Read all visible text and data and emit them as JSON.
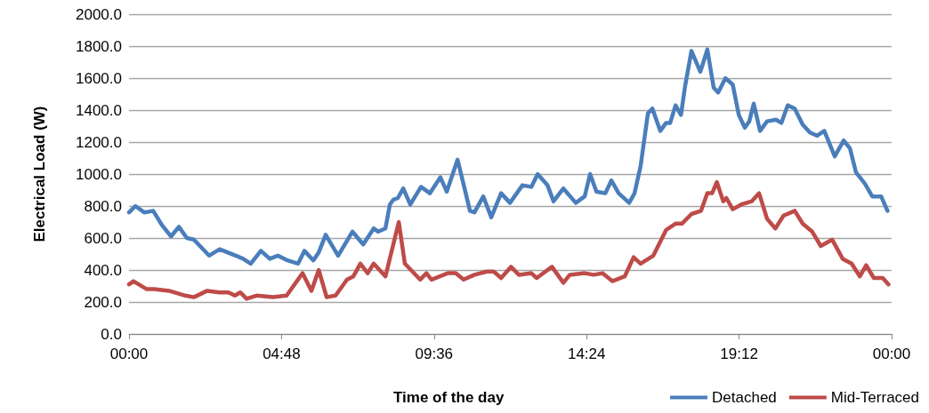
{
  "chart_data": {
    "type": "line",
    "xlabel": "Time of the day",
    "ylabel": "Electrical Load (W)",
    "xlim": [
      0,
      24
    ],
    "xticks": [
      {
        "value": 0,
        "label": "00:00"
      },
      {
        "value": 4.8,
        "label": "04:48"
      },
      {
        "value": 9.6,
        "label": "09:36"
      },
      {
        "value": 14.4,
        "label": "14:24"
      },
      {
        "value": 19.2,
        "label": "19:12"
      },
      {
        "value": 24,
        "label": "00:00"
      }
    ],
    "ylim": [
      0,
      2000
    ],
    "yticks": [
      {
        "value": 0,
        "label": "0.0"
      },
      {
        "value": 200,
        "label": "200.0"
      },
      {
        "value": 400,
        "label": "400.0"
      },
      {
        "value": 600,
        "label": "600.0"
      },
      {
        "value": 800,
        "label": "800.0"
      },
      {
        "value": 1000,
        "label": "1000.0"
      },
      {
        "value": 1200,
        "label": "1200.0"
      },
      {
        "value": 1400,
        "label": "1400.0"
      },
      {
        "value": 1600,
        "label": "1600.0"
      },
      {
        "value": 1800,
        "label": "1800.0"
      },
      {
        "value": 2000,
        "label": "2000.0"
      }
    ],
    "grid": "y",
    "legend": "bottom right",
    "marker": "none",
    "line_style": "solid",
    "series": [
      {
        "name": "Detached",
        "color": "#4a7ebb",
        "x": [
          0,
          0.2,
          0.48,
          0.76,
          1.04,
          1.32,
          1.57,
          1.82,
          2.04,
          2.52,
          2.85,
          3.36,
          3.59,
          3.83,
          4.15,
          4.43,
          4.68,
          4.99,
          5.32,
          5.52,
          5.8,
          5.97,
          6.19,
          6.58,
          7.03,
          7.37,
          7.7,
          7.84,
          8.07,
          8.21,
          8.32,
          8.46,
          8.63,
          8.85,
          9.19,
          9.47,
          9.8,
          10.0,
          10.34,
          10.73,
          10.87,
          11.15,
          11.4,
          11.71,
          11.99,
          12.38,
          12.66,
          12.86,
          13.17,
          13.36,
          13.67,
          14.06,
          14.34,
          14.51,
          14.71,
          14.99,
          15.18,
          15.41,
          15.74,
          15.91,
          16.1,
          16.33,
          16.47,
          16.72,
          16.9,
          17.03,
          17.2,
          17.37,
          17.5,
          17.7,
          17.98,
          18.2,
          18.4,
          18.54,
          18.77,
          19.0,
          19.19,
          19.38,
          19.52,
          19.66,
          19.86,
          20.08,
          20.36,
          20.53,
          20.73,
          20.95,
          21.2,
          21.43,
          21.65,
          21.88,
          22.21,
          22.49,
          22.69,
          22.88,
          23.16,
          23.39,
          23.67,
          23.87
        ],
        "values": [
          760,
          800,
          760,
          770,
          680,
          610,
          670,
          600,
          590,
          490,
          530,
          490,
          470,
          440,
          520,
          470,
          490,
          460,
          440,
          520,
          460,
          510,
          620,
          490,
          640,
          560,
          660,
          640,
          660,
          810,
          840,
          850,
          910,
          810,
          920,
          880,
          980,
          890,
          1090,
          770,
          760,
          860,
          730,
          880,
          820,
          930,
          920,
          1000,
          930,
          830,
          910,
          820,
          860,
          1000,
          890,
          880,
          960,
          880,
          820,
          880,
          1050,
          1380,
          1410,
          1270,
          1320,
          1320,
          1430,
          1370,
          1550,
          1770,
          1640,
          1780,
          1540,
          1510,
          1600,
          1560,
          1370,
          1290,
          1330,
          1440,
          1270,
          1330,
          1340,
          1320,
          1430,
          1410,
          1310,
          1260,
          1240,
          1270,
          1110,
          1210,
          1160,
          1010,
          940,
          860,
          860,
          770
        ]
      },
      {
        "name": "Mid-Terraced",
        "color": "#be4b48",
        "x": [
          0,
          0.14,
          0.56,
          0.79,
          1.26,
          1.77,
          2.04,
          2.46,
          2.85,
          3.13,
          3.33,
          3.5,
          3.7,
          4.01,
          4.53,
          4.96,
          5.46,
          5.74,
          5.97,
          6.22,
          6.5,
          6.86,
          7.06,
          7.28,
          7.51,
          7.7,
          8.07,
          8.49,
          8.68,
          9.16,
          9.36,
          9.52,
          10.03,
          10.28,
          10.53,
          10.87,
          11.26,
          11.48,
          11.71,
          12.02,
          12.27,
          12.66,
          12.83,
          13.31,
          13.67,
          13.87,
          14.34,
          14.62,
          14.9,
          15.21,
          15.6,
          15.88,
          16.1,
          16.5,
          16.7,
          16.9,
          17.2,
          17.4,
          17.7,
          18.0,
          18.2,
          18.35,
          18.5,
          18.7,
          18.8,
          19.0,
          19.27,
          19.6,
          19.83,
          20.08,
          20.34,
          20.6,
          20.95,
          21.2,
          21.5,
          21.77,
          22.13,
          22.46,
          22.74,
          23.0,
          23.2,
          23.44,
          23.72,
          23.9
        ],
        "values": [
          310,
          330,
          280,
          280,
          270,
          240,
          230,
          270,
          260,
          260,
          240,
          260,
          220,
          240,
          230,
          240,
          380,
          270,
          400,
          230,
          240,
          340,
          360,
          440,
          380,
          440,
          360,
          700,
          440,
          340,
          380,
          340,
          380,
          380,
          340,
          370,
          390,
          390,
          350,
          420,
          370,
          380,
          350,
          420,
          320,
          370,
          380,
          370,
          380,
          330,
          360,
          480,
          440,
          490,
          570,
          650,
          690,
          690,
          750,
          770,
          880,
          880,
          950,
          830,
          850,
          780,
          810,
          830,
          880,
          720,
          660,
          740,
          770,
          690,
          640,
          550,
          590,
          470,
          440,
          360,
          430,
          350,
          350,
          310
        ]
      }
    ]
  }
}
